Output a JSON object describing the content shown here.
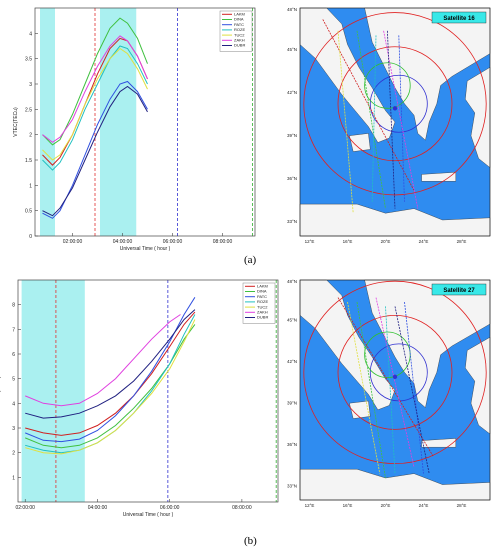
{
  "panels": [
    {
      "label": "(a)",
      "map": {
        "badge": "Satellite 16",
        "lat_ticks": [
          "45°N",
          "42°N",
          "39°N",
          "36°N",
          "33°N"
        ],
        "lon_ticks": [
          "12°E",
          "16°E",
          "20°E",
          "24°E",
          "28°E"
        ],
        "top_lat_tick": "48°N"
      }
    },
    {
      "label": "(b)",
      "map": {
        "badge": "Satellite 27",
        "lat_ticks": [
          "45°N",
          "42°N",
          "39°N",
          "36°N",
          "33°N"
        ],
        "lon_ticks": [
          "12°E",
          "16°E",
          "20°E",
          "24°E",
          "28°E"
        ],
        "top_lat_tick": "48°N"
      }
    }
  ],
  "colors": {
    "highlight": "#aaf0f0",
    "sea": "#2f8cf0",
    "land": "#f4f4f4",
    "badge": "#38e8e8"
  },
  "chart_data": [
    {
      "type": "line",
      "title": "",
      "xlabel": "Universal Time ( hour )",
      "ylabel": "VTEC(TECu)",
      "xlim": [
        0.5,
        9.3
      ],
      "ylim": [
        0,
        4.5
      ],
      "x_ticks": [
        2,
        4,
        6,
        8
      ],
      "x_tick_labels": [
        "02:00:00",
        "04:00:00",
        "06:00:00",
        "08:00:00"
      ],
      "y_ticks": [
        0,
        0.5,
        1,
        1.5,
        2,
        2.5,
        3,
        3.5,
        4
      ],
      "y_tick_labels": [
        "0",
        "0.5",
        "1",
        "1.5",
        "2",
        "2.5",
        "3",
        "3.5",
        "4"
      ],
      "shaded_intervals": [
        [
          0.7,
          1.3
        ],
        [
          3.1,
          4.55
        ]
      ],
      "vlines": [
        {
          "x": 2.9,
          "color": "#e03030"
        },
        {
          "x": 6.2,
          "color": "#3030d0"
        },
        {
          "x": 9.2,
          "color": "#30b030"
        }
      ],
      "legend_position": "top-right",
      "series": [
        {
          "name": "LAKM",
          "color": "#d02020",
          "x": [
            0.8,
            1.2,
            1.5,
            2.0,
            2.5,
            3.0,
            3.5,
            3.9,
            4.2,
            4.6,
            5.0
          ],
          "y": [
            1.6,
            1.4,
            1.55,
            2.0,
            2.6,
            3.2,
            3.7,
            3.9,
            3.85,
            3.55,
            3.1
          ]
        },
        {
          "name": "DINA",
          "color": "#40c040",
          "x": [
            0.8,
            1.2,
            1.5,
            2.0,
            2.5,
            3.0,
            3.5,
            3.9,
            4.2,
            4.6,
            5.0
          ],
          "y": [
            2.0,
            1.8,
            1.9,
            2.4,
            3.0,
            3.6,
            4.1,
            4.3,
            4.2,
            3.9,
            3.4
          ]
        },
        {
          "name": "PATC",
          "color": "#3050e0",
          "x": [
            0.8,
            1.2,
            1.5,
            2.0,
            2.5,
            3.0,
            3.5,
            3.9,
            4.2,
            4.6,
            5.0
          ],
          "y": [
            0.45,
            0.35,
            0.5,
            1.0,
            1.6,
            2.2,
            2.7,
            3.0,
            3.05,
            2.85,
            2.5
          ]
        },
        {
          "name": "ROZE",
          "color": "#20c0c0",
          "x": [
            0.8,
            1.2,
            1.5,
            2.0,
            2.5,
            3.0,
            3.5,
            3.9,
            4.2,
            4.6,
            5.0
          ],
          "y": [
            1.5,
            1.3,
            1.45,
            1.9,
            2.5,
            3.0,
            3.5,
            3.75,
            3.7,
            3.4,
            3.0
          ]
        },
        {
          "name": "TUC2",
          "color": "#e0e040",
          "x": [
            0.8,
            1.2,
            1.5,
            2.0,
            2.5,
            3.0,
            3.5,
            3.9,
            4.2,
            4.6,
            5.0
          ],
          "y": [
            1.7,
            1.5,
            1.6,
            2.0,
            2.6,
            3.1,
            3.5,
            3.7,
            3.6,
            3.3,
            2.9
          ]
        },
        {
          "name": "ZAKH",
          "color": "#e040e0",
          "x": [
            0.8,
            1.2,
            1.5,
            2.0,
            2.5,
            3.0,
            3.5,
            3.9,
            4.2,
            4.6,
            5.0
          ],
          "y": [
            2.0,
            1.85,
            1.95,
            2.3,
            2.85,
            3.35,
            3.75,
            3.95,
            3.85,
            3.55,
            3.1
          ]
        },
        {
          "name": "DUBR",
          "color": "#202080",
          "x": [
            0.8,
            1.2,
            1.5,
            2.0,
            2.5,
            3.0,
            3.5,
            3.9,
            4.2,
            4.6,
            5.0
          ],
          "y": [
            0.5,
            0.4,
            0.55,
            0.95,
            1.5,
            2.05,
            2.55,
            2.85,
            2.95,
            2.8,
            2.45
          ]
        }
      ]
    },
    {
      "type": "line",
      "title": "",
      "xlabel": "Universal Time ( hour )",
      "ylabel": "VTEC(TECu)",
      "xlim": [
        1.8,
        9.0
      ],
      "ylim": [
        0,
        9
      ],
      "x_ticks": [
        2,
        4,
        6,
        8
      ],
      "x_tick_labels": [
        "02:00:00",
        "04:00:00",
        "06:00:00",
        "08:00:00"
      ],
      "y_ticks": [
        1,
        2,
        3,
        4,
        5,
        6,
        7,
        8
      ],
      "y_tick_labels": [
        "1",
        "2",
        "3",
        "4",
        "5",
        "6",
        "7",
        "8"
      ],
      "shaded_intervals": [
        [
          1.9,
          3.65
        ]
      ],
      "vlines": [
        {
          "x": 2.85,
          "color": "#e03030"
        },
        {
          "x": 5.95,
          "color": "#3030d0"
        },
        {
          "x": 8.95,
          "color": "#30b030"
        }
      ],
      "legend_position": "top-right",
      "series": [
        {
          "name": "LAKM",
          "color": "#d02020",
          "x": [
            2.0,
            2.5,
            3.0,
            3.5,
            4.0,
            4.5,
            5.0,
            5.5,
            6.0,
            6.4,
            6.7
          ],
          "y": [
            3.0,
            2.8,
            2.7,
            2.8,
            3.1,
            3.6,
            4.3,
            5.2,
            6.3,
            7.2,
            7.7
          ]
        },
        {
          "name": "DINA",
          "color": "#40c040",
          "x": [
            2.0,
            2.5,
            3.0,
            3.5,
            4.0,
            4.5,
            5.0,
            5.5,
            6.0,
            6.4,
            6.7
          ],
          "y": [
            2.6,
            2.3,
            2.2,
            2.3,
            2.6,
            3.1,
            3.8,
            4.6,
            5.6,
            6.6,
            7.2
          ]
        },
        {
          "name": "PATC",
          "color": "#3050e0",
          "x": [
            2.0,
            2.5,
            3.0,
            3.5,
            4.0,
            4.5,
            5.0,
            5.5,
            6.0,
            6.4,
            6.7
          ],
          "y": [
            2.8,
            2.5,
            2.45,
            2.55,
            2.9,
            3.5,
            4.3,
            5.3,
            6.5,
            7.6,
            8.3
          ]
        },
        {
          "name": "ROZE",
          "color": "#20c0c0",
          "x": [
            2.0,
            2.5,
            3.0,
            3.5,
            4.0,
            4.5,
            5.0,
            5.5,
            6.0,
            6.4,
            6.7
          ],
          "y": [
            2.3,
            2.1,
            2.0,
            2.1,
            2.4,
            2.9,
            3.6,
            4.5,
            5.6,
            6.8,
            7.6
          ]
        },
        {
          "name": "TUC2",
          "color": "#e0e040",
          "x": [
            2.0,
            2.5,
            3.0,
            3.5,
            4.0,
            4.5,
            5.0,
            5.5,
            6.0,
            6.4,
            6.7
          ],
          "y": [
            2.2,
            2.0,
            1.95,
            2.1,
            2.4,
            2.9,
            3.6,
            4.4,
            5.4,
            6.5,
            7.4
          ]
        },
        {
          "name": "ZAKH",
          "color": "#e040e0",
          "x": [
            2.0,
            2.5,
            3.0,
            3.5,
            4.0,
            4.5,
            5.0,
            5.5,
            6.0,
            6.3
          ],
          "y": [
            4.3,
            4.0,
            3.9,
            4.0,
            4.4,
            5.0,
            5.8,
            6.6,
            7.3,
            7.6
          ]
        },
        {
          "name": "DUBR",
          "color": "#202080",
          "x": [
            2.0,
            2.5,
            3.0,
            3.5,
            4.0,
            4.5,
            5.0,
            5.5,
            6.0,
            6.4,
            6.7
          ],
          "y": [
            3.6,
            3.4,
            3.45,
            3.6,
            3.9,
            4.3,
            4.9,
            5.7,
            6.6,
            7.4,
            7.8
          ]
        }
      ]
    }
  ]
}
